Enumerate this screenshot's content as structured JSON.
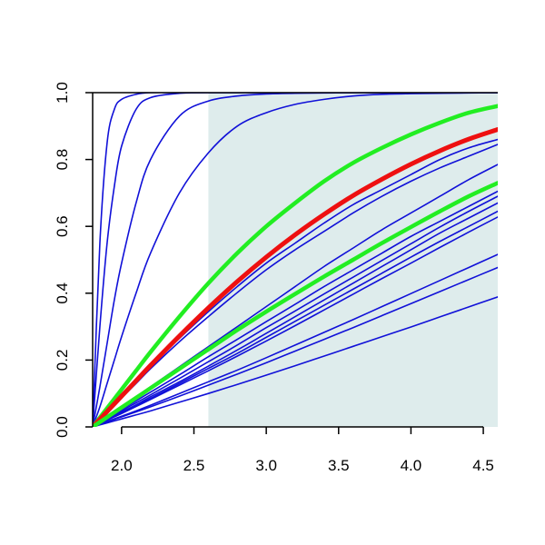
{
  "chart_data": {
    "type": "line",
    "title": "",
    "xlabel": "",
    "ylabel": "",
    "xlim": [
      1.8,
      4.6
    ],
    "ylim": [
      0.0,
      1.0
    ],
    "x_ticks": [
      "2.0",
      "2.5",
      "3.0",
      "3.5",
      "4.0",
      "4.5"
    ],
    "x_tick_values": [
      2.0,
      2.5,
      3.0,
      3.5,
      4.0,
      4.5
    ],
    "y_ticks": [
      "0.0",
      "0.2",
      "0.4",
      "0.6",
      "0.8",
      "1.0"
    ],
    "y_tick_values": [
      0.0,
      0.2,
      0.4,
      0.6,
      0.8,
      1.0
    ],
    "grid": false,
    "shaded_region": {
      "x": [
        2.6,
        4.6
      ],
      "y": [
        0.0,
        1.0
      ],
      "color": "#deecec"
    },
    "colors": {
      "blue": "#1010d8",
      "green": "#22ee22",
      "red": "#ee1010"
    },
    "x": [
      1.8,
      1.85,
      1.9,
      1.95,
      2.0,
      2.1,
      2.2,
      2.4,
      2.6,
      2.8,
      3.0,
      3.2,
      3.4,
      3.6,
      3.8,
      4.0,
      4.2,
      4.4,
      4.6
    ],
    "series": [
      {
        "style": "blue",
        "values": [
          0.0,
          0.55,
          0.85,
          0.95,
          0.98,
          0.995,
          1.0,
          1.0,
          1.0,
          1.0,
          1.0,
          1.0,
          1.0,
          1.0,
          1.0,
          1.0,
          1.0,
          1.0,
          1.0
        ]
      },
      {
        "style": "blue",
        "values": [
          0.0,
          0.3,
          0.55,
          0.72,
          0.84,
          0.95,
          0.985,
          0.998,
          1.0,
          1.0,
          1.0,
          1.0,
          1.0,
          1.0,
          1.0,
          1.0,
          1.0,
          1.0,
          1.0
        ]
      },
      {
        "style": "blue",
        "values": [
          0.0,
          0.12,
          0.25,
          0.38,
          0.49,
          0.67,
          0.8,
          0.93,
          0.975,
          0.99,
          0.996,
          0.998,
          0.999,
          1.0,
          1.0,
          1.0,
          1.0,
          1.0,
          1.0
        ]
      },
      {
        "style": "blue",
        "values": [
          0.0,
          0.06,
          0.13,
          0.2,
          0.27,
          0.4,
          0.52,
          0.7,
          0.82,
          0.9,
          0.94,
          0.965,
          0.98,
          0.99,
          0.995,
          0.997,
          0.998,
          0.999,
          1.0
        ]
      },
      {
        "style": "blue",
        "values": [
          0.0,
          0.022,
          0.045,
          0.068,
          0.09,
          0.135,
          0.18,
          0.265,
          0.345,
          0.42,
          0.49,
          0.55,
          0.61,
          0.665,
          0.71,
          0.755,
          0.8,
          0.835,
          0.86
        ]
      },
      {
        "style": "blue",
        "values": [
          0.0,
          0.021,
          0.043,
          0.065,
          0.087,
          0.13,
          0.174,
          0.255,
          0.33,
          0.402,
          0.47,
          0.53,
          0.585,
          0.64,
          0.69,
          0.735,
          0.775,
          0.81,
          0.845
        ]
      },
      {
        "style": "blue",
        "values": [
          0.0,
          0.015,
          0.03,
          0.045,
          0.06,
          0.09,
          0.12,
          0.18,
          0.24,
          0.3,
          0.36,
          0.42,
          0.48,
          0.535,
          0.59,
          0.64,
          0.69,
          0.74,
          0.785
        ]
      },
      {
        "style": "blue",
        "values": [
          0.0,
          0.013,
          0.026,
          0.039,
          0.052,
          0.078,
          0.104,
          0.156,
          0.21,
          0.262,
          0.315,
          0.367,
          0.42,
          0.47,
          0.52,
          0.57,
          0.615,
          0.66,
          0.705
        ]
      },
      {
        "style": "blue",
        "values": [
          0.0,
          0.012,
          0.024,
          0.036,
          0.048,
          0.072,
          0.096,
          0.145,
          0.195,
          0.245,
          0.297,
          0.347,
          0.398,
          0.448,
          0.498,
          0.548,
          0.598,
          0.645,
          0.69
        ]
      },
      {
        "style": "blue",
        "values": [
          0.0,
          0.011,
          0.022,
          0.033,
          0.044,
          0.066,
          0.09,
          0.135,
          0.182,
          0.23,
          0.28,
          0.33,
          0.38,
          0.43,
          0.48,
          0.53,
          0.58,
          0.625,
          0.67
        ]
      },
      {
        "style": "blue",
        "values": [
          0.0,
          0.011,
          0.021,
          0.032,
          0.042,
          0.064,
          0.085,
          0.13,
          0.175,
          0.22,
          0.268,
          0.316,
          0.364,
          0.412,
          0.46,
          0.508,
          0.555,
          0.6,
          0.645
        ]
      },
      {
        "style": "blue",
        "values": [
          0.0,
          0.01,
          0.02,
          0.03,
          0.04,
          0.061,
          0.082,
          0.125,
          0.168,
          0.212,
          0.257,
          0.303,
          0.35,
          0.397,
          0.444,
          0.49,
          0.537,
          0.583,
          0.628
        ]
      },
      {
        "style": "blue",
        "values": [
          0.0,
          0.008,
          0.016,
          0.024,
          0.032,
          0.048,
          0.065,
          0.1,
          0.135,
          0.17,
          0.207,
          0.245,
          0.283,
          0.321,
          0.36,
          0.399,
          0.438,
          0.477,
          0.516
        ]
      },
      {
        "style": "blue",
        "values": [
          0.0,
          0.0075,
          0.015,
          0.0225,
          0.03,
          0.045,
          0.06,
          0.092,
          0.125,
          0.158,
          0.192,
          0.227,
          0.262,
          0.297,
          0.333,
          0.369,
          0.405,
          0.441,
          0.477
        ]
      },
      {
        "style": "blue",
        "values": [
          0.0,
          0.006,
          0.012,
          0.018,
          0.024,
          0.036,
          0.048,
          0.074,
          0.1,
          0.127,
          0.155,
          0.183,
          0.212,
          0.241,
          0.27,
          0.299,
          0.329,
          0.359,
          0.389
        ]
      },
      {
        "style": "green",
        "values": [
          0.0,
          0.028,
          0.056,
          0.084,
          0.112,
          0.168,
          0.224,
          0.33,
          0.43,
          0.52,
          0.6,
          0.67,
          0.735,
          0.79,
          0.835,
          0.875,
          0.91,
          0.94,
          0.96
        ]
      },
      {
        "style": "red",
        "values": [
          0.0,
          0.023,
          0.046,
          0.069,
          0.092,
          0.138,
          0.184,
          0.272,
          0.356,
          0.435,
          0.508,
          0.575,
          0.636,
          0.692,
          0.741,
          0.786,
          0.826,
          0.861,
          0.89
        ]
      },
      {
        "style": "green",
        "values": [
          0.0,
          0.0145,
          0.029,
          0.0435,
          0.058,
          0.087,
          0.116,
          0.174,
          0.232,
          0.29,
          0.345,
          0.398,
          0.45,
          0.5,
          0.55,
          0.598,
          0.645,
          0.69,
          0.73
        ]
      }
    ]
  }
}
